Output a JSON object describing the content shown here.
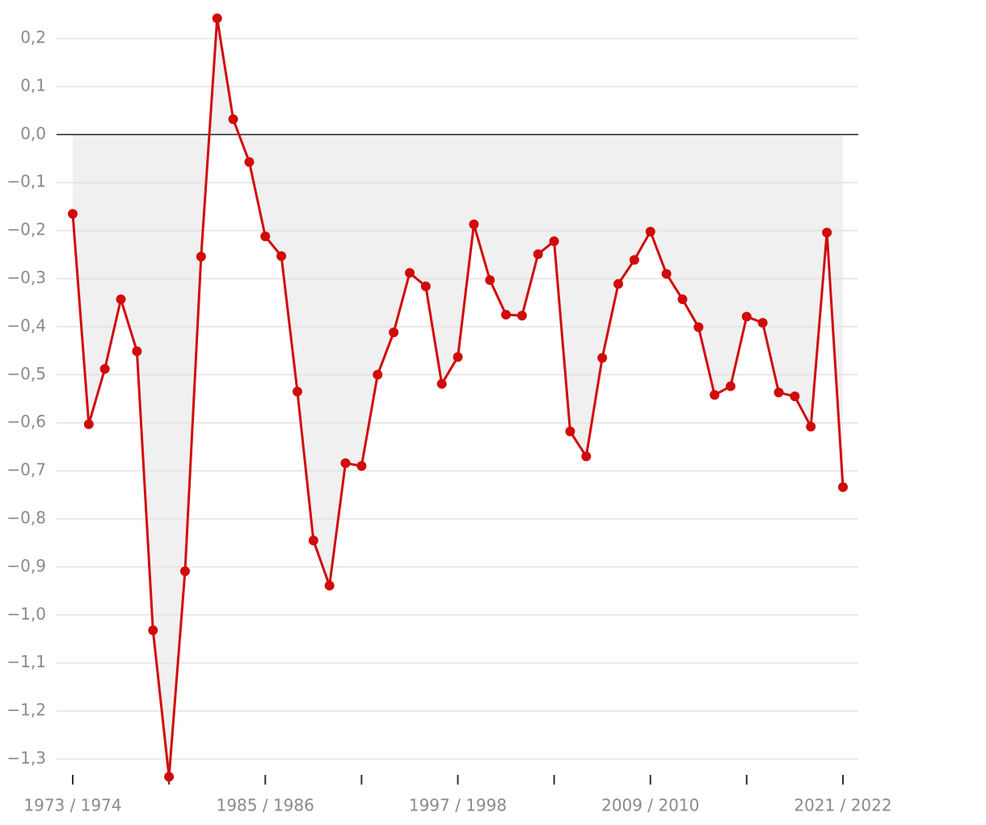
{
  "chart_data": {
    "type": "line",
    "categories": [
      "1973 / 1974",
      null,
      null,
      null,
      null,
      null,
      null,
      null,
      null,
      null,
      null,
      null,
      "1985 / 1986",
      null,
      null,
      null,
      null,
      null,
      null,
      null,
      null,
      null,
      null,
      null,
      "1997 / 1998",
      null,
      null,
      null,
      null,
      null,
      null,
      null,
      null,
      null,
      null,
      null,
      "2009 / 2010",
      null,
      null,
      null,
      null,
      null,
      null,
      null,
      null,
      null,
      null,
      null,
      "2021 / 2022"
    ],
    "series": [
      {
        "color": "#d10a0a",
        "values": [
          -0.165,
          -0.603,
          -0.488,
          -0.343,
          -0.451,
          -1.032,
          -1.337,
          -0.909,
          -0.254,
          0.242,
          0.032,
          -0.057,
          -0.212,
          -0.253,
          -0.535,
          -0.845,
          -0.939,
          -0.684,
          -0.69,
          -0.5,
          -0.412,
          -0.288,
          -0.316,
          -0.519,
          -0.463,
          -0.187,
          -0.303,
          -0.375,
          -0.377,
          -0.249,
          -0.222,
          -0.618,
          -0.67,
          -0.465,
          -0.311,
          -0.261,
          -0.202,
          -0.29,
          -0.343,
          -0.401,
          -0.542,
          -0.524,
          -0.379,
          -0.392,
          -0.537,
          -0.545,
          -0.608,
          -0.204,
          -0.734
        ]
      }
    ],
    "area_color": "#f0f0f0",
    "ylim": [
      -1.37,
      0.27
    ],
    "yticks": [
      {
        "value": 0.2,
        "label": "0,2"
      },
      {
        "value": 0.1,
        "label": "0,1"
      },
      {
        "value": 0,
        "label": "0,0"
      },
      {
        "value": -0.1,
        "label": "−0,1"
      },
      {
        "value": -0.2,
        "label": "−0,2"
      },
      {
        "value": -0.3,
        "label": "−0,3"
      },
      {
        "value": -0.4,
        "label": "−0,4"
      },
      {
        "value": -0.5,
        "label": "−0,5"
      },
      {
        "value": -0.6,
        "label": "−0,6"
      },
      {
        "value": -0.7,
        "label": "−0,7"
      },
      {
        "value": -0.8,
        "label": "−0,8"
      },
      {
        "value": -0.9,
        "label": "−0,9"
      },
      {
        "value": -1,
        "label": "−1,0"
      },
      {
        "value": -1.1,
        "label": "−1,1"
      },
      {
        "value": -1.2,
        "label": "−1,2"
      },
      {
        "value": -1.3,
        "label": "−1,3"
      }
    ],
    "grid": true
  }
}
